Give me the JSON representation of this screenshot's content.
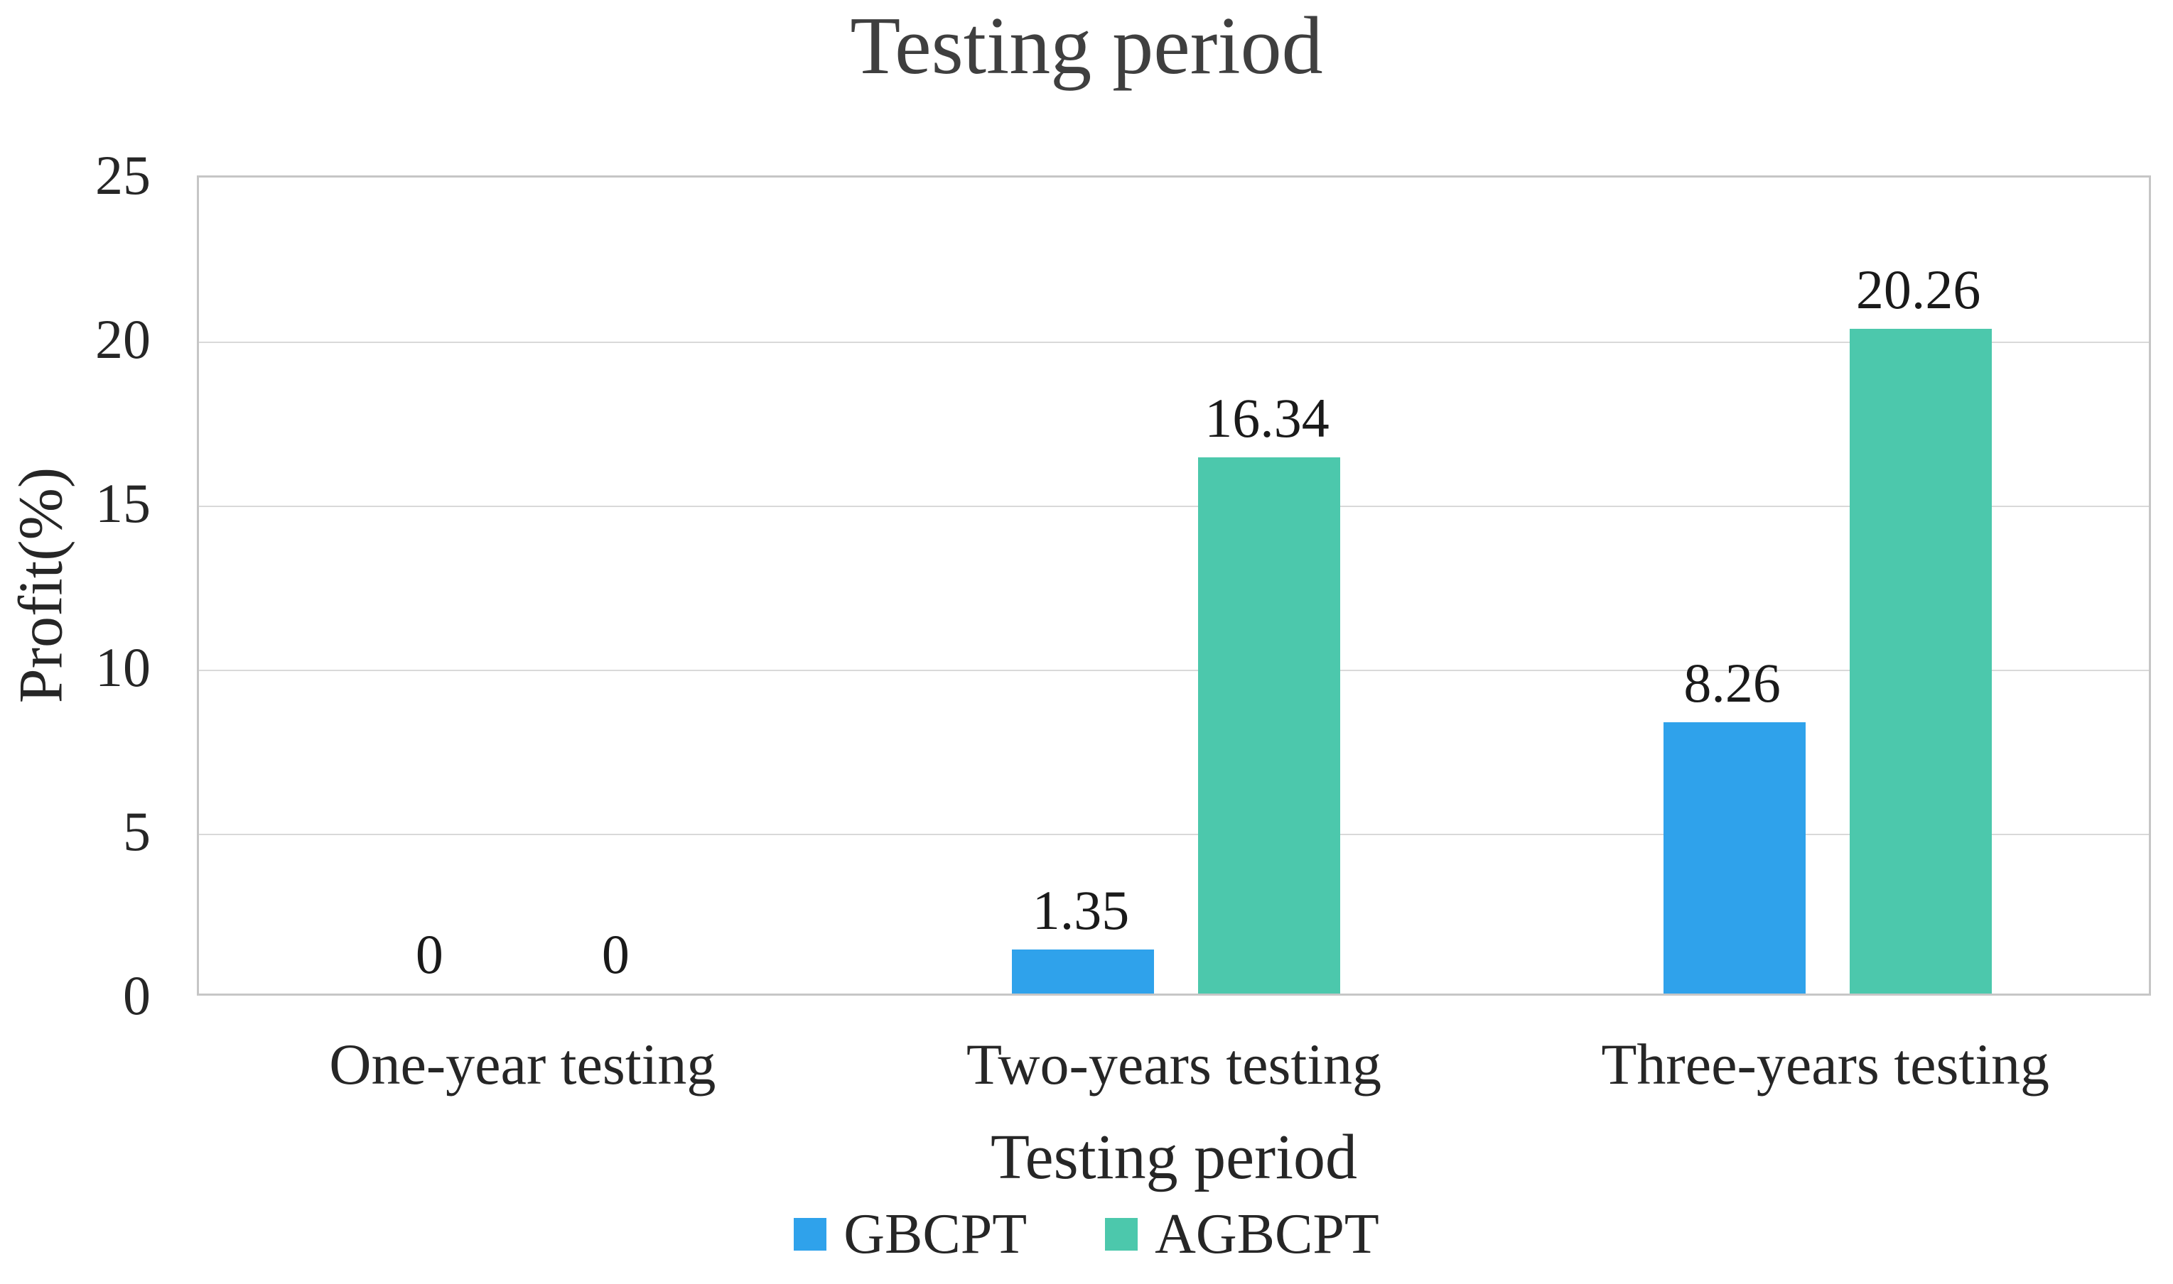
{
  "chart_data": {
    "type": "bar",
    "title": "Testing period",
    "xlabel": "Testing period",
    "ylabel": "Profit(%)",
    "categories": [
      "One-year testing",
      "Two-years testing",
      "Three-years testing"
    ],
    "series": [
      {
        "name": "GBCPT",
        "color": "#2fa2eb",
        "values": [
          0,
          1.35,
          8.26
        ],
        "labels": [
          "0",
          "1.35",
          "8.26"
        ]
      },
      {
        "name": "AGBCPT",
        "color": "#4cc8ac",
        "values": [
          0,
          16.34,
          20.26
        ],
        "labels": [
          "0",
          "16.34",
          "20.26"
        ]
      }
    ],
    "ylim": [
      0,
      25
    ],
    "yticks": [
      0,
      5,
      10,
      15,
      20,
      25
    ],
    "grid": true,
    "legend_position": "bottom",
    "colors": {
      "gridline": "#d9d9d9",
      "plot_border": "#c6c6c6",
      "text": "#262626",
      "title_text": "#3f3f3f"
    }
  }
}
